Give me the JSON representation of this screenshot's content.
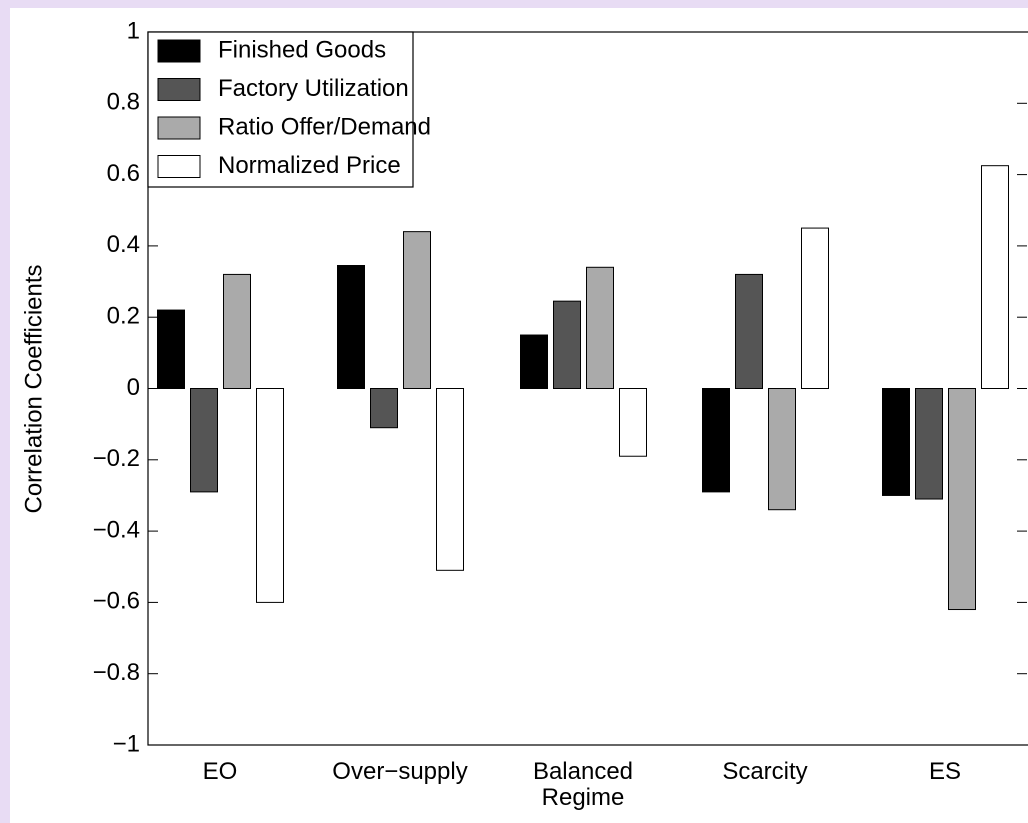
{
  "chart_data": {
    "type": "bar",
    "y_label": "Correlation Coefficients",
    "categories": [
      "EO",
      "Over−supply",
      "Balanced Regime",
      "Scarcity",
      "ES"
    ],
    "series": [
      {
        "name": "Finished Goods",
        "color": "#000000",
        "values": [
          0.22,
          0.345,
          0.15,
          -0.29,
          -0.3
        ]
      },
      {
        "name": "Factory Utilization",
        "color": "#555555",
        "values": [
          -0.29,
          -0.11,
          0.245,
          0.32,
          -0.31
        ]
      },
      {
        "name": "Ratio Offer/Demand",
        "color": "#aaaaaa",
        "values": [
          0.32,
          0.44,
          0.34,
          -0.34,
          -0.62
        ]
      },
      {
        "name": "Normalized Price",
        "color": "#ffffff",
        "values": [
          -0.6,
          -0.51,
          -0.19,
          0.45,
          0.625
        ]
      }
    ],
    "ylim": [
      -1,
      1
    ],
    "yticks": [
      {
        "value": -1,
        "label": "−1"
      },
      {
        "value": -0.8,
        "label": "−0.8"
      },
      {
        "value": -0.6,
        "label": "−0.6"
      },
      {
        "value": -0.4,
        "label": "−0.4"
      },
      {
        "value": -0.2,
        "label": "−0.2"
      },
      0,
      0.2,
      0.4,
      0.6,
      0.8,
      1
    ],
    "legend": "upper left"
  }
}
